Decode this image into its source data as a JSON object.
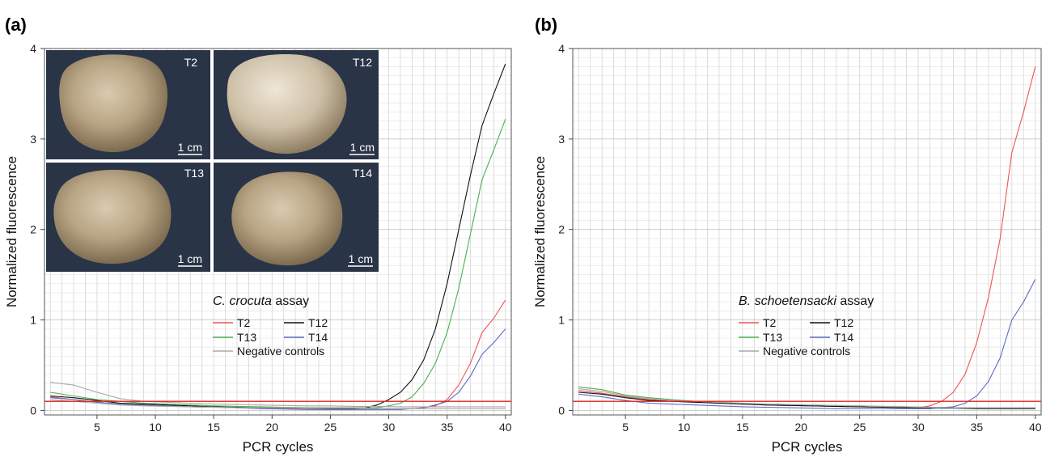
{
  "chart_data": [
    {
      "type": "line",
      "panel_label": "(a)",
      "xlabel": "PCR cycles",
      "ylabel": "Normalized fluorescence",
      "xlim": [
        0.5,
        40.5
      ],
      "ylim": [
        -0.05,
        4.0
      ],
      "x_ticks": [
        "5",
        "10",
        "15",
        "20",
        "25",
        "30",
        "35",
        "40"
      ],
      "y_ticks": [
        "0",
        "1",
        "2",
        "3",
        "4"
      ],
      "grid": true,
      "threshold": 0.1,
      "threshold_color": "#e0221a",
      "legend": {
        "title_italic": "C. crocuta",
        "title_rest": " assay",
        "entries": [
          "T2",
          "T12",
          "T13",
          "T14",
          "Negative controls"
        ]
      },
      "series": [
        {
          "name": "T2",
          "color": "#ef5350",
          "x": [
            1,
            3,
            5,
            7,
            9,
            11,
            13,
            15,
            17,
            19,
            21,
            23,
            25,
            27,
            29,
            31,
            32,
            33,
            34,
            35,
            36,
            37,
            38,
            39,
            40
          ],
          "y": [
            0.15,
            0.12,
            0.09,
            0.07,
            0.06,
            0.05,
            0.04,
            0.035,
            0.03,
            0.025,
            0.02,
            0.02,
            0.02,
            0.02,
            0.02,
            0.02,
            0.02,
            0.03,
            0.05,
            0.12,
            0.28,
            0.52,
            0.86,
            1.02,
            1.22
          ]
        },
        {
          "name": "T12",
          "color": "#111111",
          "x": [
            1,
            3,
            5,
            7,
            9,
            11,
            13,
            15,
            17,
            19,
            21,
            23,
            25,
            27,
            28,
            29,
            30,
            31,
            32,
            33,
            34,
            35,
            36,
            37,
            38,
            39,
            40
          ],
          "y": [
            0.16,
            0.14,
            0.11,
            0.08,
            0.07,
            0.06,
            0.05,
            0.04,
            0.035,
            0.03,
            0.03,
            0.025,
            0.02,
            0.02,
            0.03,
            0.06,
            0.12,
            0.2,
            0.34,
            0.56,
            0.9,
            1.4,
            2.0,
            2.6,
            3.15,
            3.5,
            3.83
          ]
        },
        {
          "name": "T13",
          "color": "#4caf50",
          "x": [
            1,
            3,
            5,
            7,
            9,
            11,
            13,
            15,
            17,
            19,
            21,
            23,
            25,
            27,
            29,
            30,
            31,
            32,
            33,
            34,
            35,
            36,
            37,
            38,
            39,
            40
          ],
          "y": [
            0.2,
            0.16,
            0.12,
            0.1,
            0.08,
            0.07,
            0.06,
            0.05,
            0.045,
            0.04,
            0.035,
            0.03,
            0.03,
            0.03,
            0.03,
            0.05,
            0.08,
            0.15,
            0.3,
            0.52,
            0.86,
            1.35,
            1.95,
            2.55,
            2.88,
            3.22
          ]
        },
        {
          "name": "T14",
          "color": "#5c6bc0",
          "x": [
            1,
            3,
            5,
            7,
            9,
            11,
            13,
            15,
            17,
            19,
            21,
            23,
            25,
            27,
            29,
            31,
            32,
            33,
            34,
            35,
            36,
            37,
            38,
            39,
            40
          ],
          "y": [
            0.14,
            0.12,
            0.09,
            0.07,
            0.06,
            0.05,
            0.04,
            0.035,
            0.03,
            0.02,
            0.015,
            0.01,
            0.01,
            0.01,
            0.01,
            0.01,
            0.02,
            0.03,
            0.06,
            0.1,
            0.2,
            0.38,
            0.62,
            0.75,
            0.9
          ]
        },
        {
          "name": "Negative controls",
          "color": "#a8a8a8",
          "x": [
            1,
            3,
            5,
            7,
            9,
            11,
            13,
            15,
            17,
            19,
            21,
            23,
            25,
            27,
            29,
            31,
            33,
            35,
            37,
            40
          ],
          "y": [
            0.31,
            0.28,
            0.2,
            0.13,
            0.1,
            0.09,
            0.08,
            0.07,
            0.065,
            0.06,
            0.055,
            0.05,
            0.05,
            0.045,
            0.045,
            0.04,
            0.04,
            0.04,
            0.04,
            0.04
          ]
        },
        {
          "name": "Negative controls",
          "color": "#a8a8a8",
          "x": [
            1,
            3,
            5,
            7,
            9,
            11,
            13,
            15,
            17,
            19,
            21,
            23,
            25,
            27,
            29,
            31,
            33,
            35,
            37,
            40
          ],
          "y": [
            0.12,
            0.1,
            0.08,
            0.06,
            0.05,
            0.045,
            0.04,
            0.035,
            0.03,
            0.03,
            0.03,
            0.025,
            0.025,
            0.025,
            0.02,
            0.02,
            0.02,
            0.02,
            0.02,
            0.02
          ]
        }
      ],
      "inset_photos": [
        {
          "label": "T2",
          "scale": "1 cm"
        },
        {
          "label": "T12",
          "scale": "1 cm"
        },
        {
          "label": "T13",
          "scale": "1 cm"
        },
        {
          "label": "T14",
          "scale": "1 cm"
        }
      ]
    },
    {
      "type": "line",
      "panel_label": "(b)",
      "xlabel": "PCR cycles",
      "ylabel": "Normalized fluorescence",
      "xlim": [
        0.5,
        40.5
      ],
      "ylim": [
        -0.05,
        4.0
      ],
      "x_ticks": [
        "5",
        "10",
        "15",
        "20",
        "25",
        "30",
        "35",
        "40"
      ],
      "y_ticks": [
        "0",
        "1",
        "2",
        "3",
        "4"
      ],
      "grid": true,
      "threshold": 0.1,
      "threshold_color": "#e0221a",
      "legend": {
        "title_italic": "B. schoetensacki",
        "title_rest": " assay",
        "entries": [
          "T2",
          "T12",
          "T13",
          "T14",
          "Negative controls"
        ]
      },
      "series": [
        {
          "name": "T2",
          "color": "#ef5350",
          "x": [
            1,
            3,
            5,
            7,
            9,
            11,
            13,
            15,
            17,
            19,
            21,
            23,
            25,
            27,
            29,
            30,
            31,
            32,
            33,
            34,
            35,
            36,
            37,
            38,
            39,
            40
          ],
          "y": [
            0.22,
            0.19,
            0.15,
            0.12,
            0.1,
            0.09,
            0.08,
            0.07,
            0.06,
            0.055,
            0.05,
            0.045,
            0.04,
            0.035,
            0.03,
            0.03,
            0.05,
            0.1,
            0.2,
            0.4,
            0.75,
            1.25,
            1.9,
            2.85,
            3.3,
            3.8
          ]
        },
        {
          "name": "T12",
          "color": "#111111",
          "x": [
            1,
            3,
            5,
            7,
            9,
            11,
            13,
            15,
            17,
            19,
            21,
            23,
            25,
            27,
            29,
            31,
            33,
            35,
            37,
            40
          ],
          "y": [
            0.2,
            0.18,
            0.14,
            0.11,
            0.1,
            0.09,
            0.08,
            0.07,
            0.06,
            0.055,
            0.05,
            0.045,
            0.04,
            0.035,
            0.03,
            0.025,
            0.025,
            0.02,
            0.02,
            0.02
          ]
        },
        {
          "name": "T13",
          "color": "#4caf50",
          "x": [
            1,
            3,
            5,
            7,
            9,
            11,
            13,
            15,
            17,
            19,
            21,
            23,
            25,
            27,
            29,
            31,
            33,
            35,
            37,
            40
          ],
          "y": [
            0.26,
            0.23,
            0.17,
            0.14,
            0.12,
            0.1,
            0.09,
            0.08,
            0.07,
            0.065,
            0.06,
            0.055,
            0.05,
            0.045,
            0.04,
            0.035,
            0.03,
            0.03,
            0.03,
            0.03
          ]
        },
        {
          "name": "T14",
          "color": "#5c6bc0",
          "x": [
            1,
            3,
            5,
            7,
            9,
            11,
            13,
            15,
            17,
            19,
            21,
            23,
            25,
            27,
            29,
            31,
            33,
            34,
            35,
            36,
            37,
            38,
            39,
            40
          ],
          "y": [
            0.18,
            0.15,
            0.11,
            0.08,
            0.07,
            0.06,
            0.05,
            0.04,
            0.035,
            0.03,
            0.025,
            0.02,
            0.02,
            0.02,
            0.02,
            0.02,
            0.04,
            0.08,
            0.16,
            0.32,
            0.58,
            1.0,
            1.2,
            1.45
          ]
        },
        {
          "name": "Negative controls",
          "color": "#a8a8a8",
          "x": [
            1,
            3,
            5,
            7,
            9,
            11,
            13,
            15,
            17,
            19,
            21,
            23,
            25,
            27,
            29,
            31,
            33,
            35,
            37,
            40
          ],
          "y": [
            0.24,
            0.21,
            0.16,
            0.13,
            0.11,
            0.1,
            0.09,
            0.08,
            0.07,
            0.065,
            0.06,
            0.055,
            0.05,
            0.045,
            0.04,
            0.035,
            0.03,
            0.03,
            0.03,
            0.03
          ]
        }
      ]
    }
  ]
}
